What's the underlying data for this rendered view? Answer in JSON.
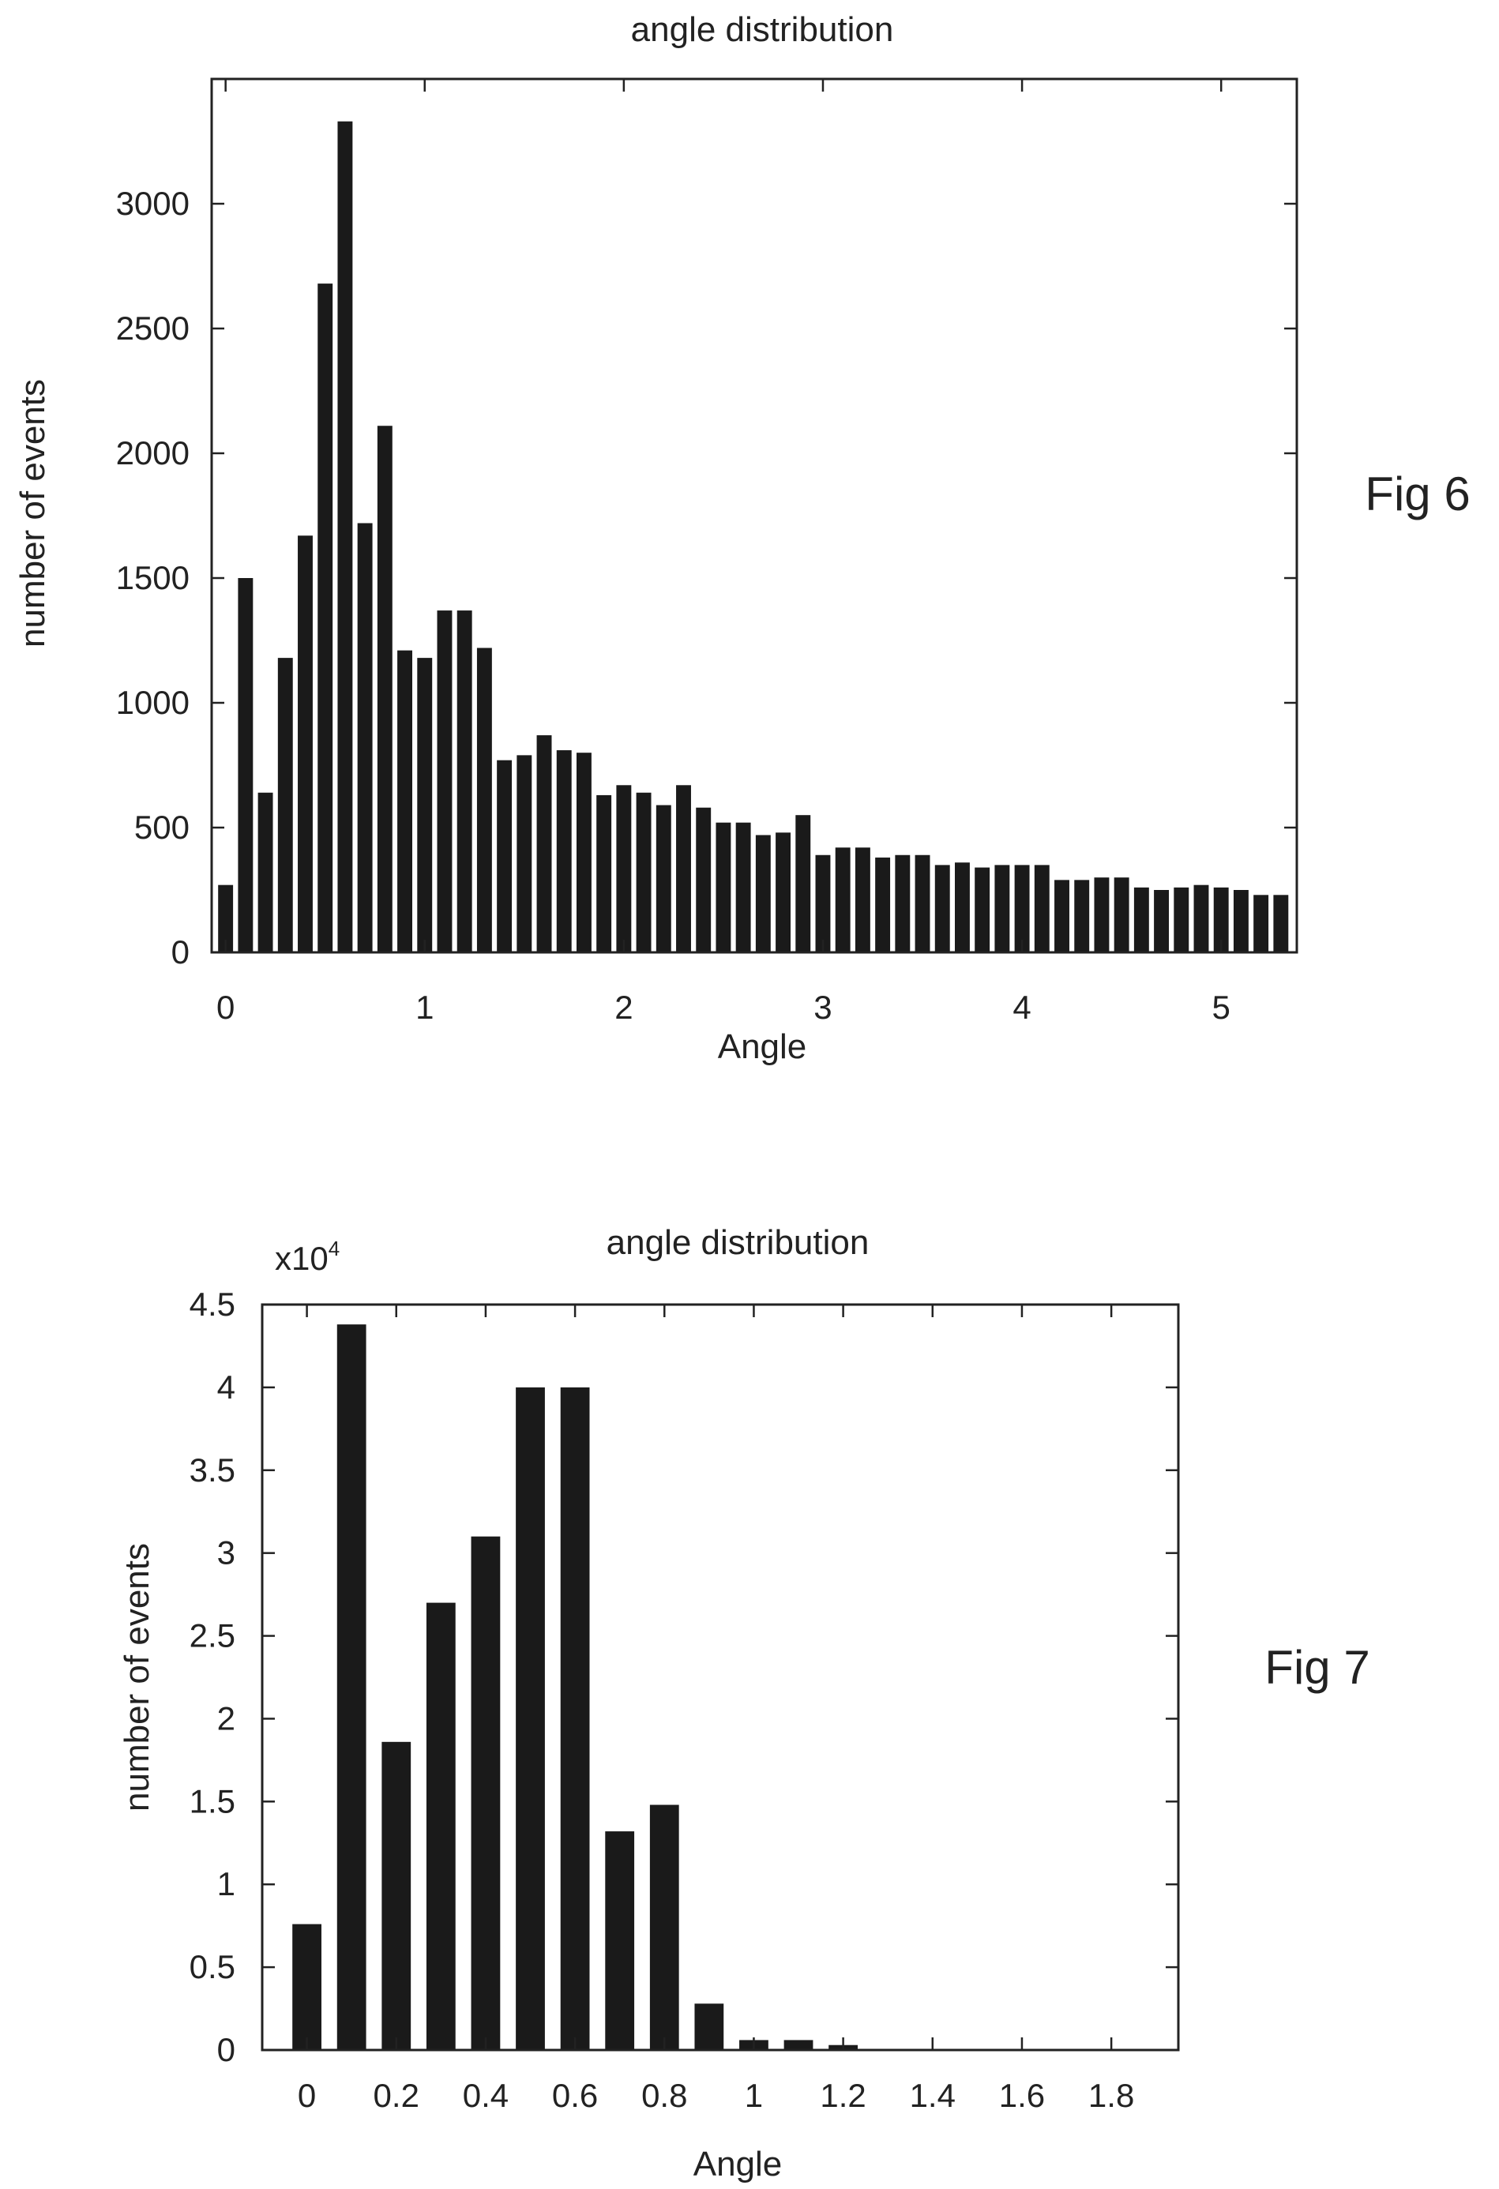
{
  "chart_data": [
    {
      "type": "bar",
      "figure_label": "Fig 6",
      "title": "angle distribution",
      "xlabel": "Angle",
      "ylabel": "number of events",
      "xlim": [
        -0.07,
        5.38
      ],
      "ylim": [
        0,
        3500
      ],
      "xticks": [
        0,
        1,
        2,
        3,
        4,
        5
      ],
      "yticks": [
        0,
        500,
        1000,
        1500,
        2000,
        2500,
        3000
      ],
      "bar_width": 0.075,
      "x": [
        0.0,
        0.1,
        0.2,
        0.3,
        0.4,
        0.5,
        0.6,
        0.7,
        0.8,
        0.9,
        1.0,
        1.1,
        1.2,
        1.3,
        1.4,
        1.5,
        1.6,
        1.7,
        1.8,
        1.9,
        2.0,
        2.1,
        2.2,
        2.3,
        2.4,
        2.5,
        2.6,
        2.7,
        2.8,
        2.9,
        3.0,
        3.1,
        3.2,
        3.3,
        3.4,
        3.5,
        3.6,
        3.7,
        3.8,
        3.9,
        4.0,
        4.1,
        4.2,
        4.3,
        4.4,
        4.5,
        4.6,
        4.7,
        4.8,
        4.9,
        5.0,
        5.1,
        5.2,
        5.3
      ],
      "values": [
        270,
        1500,
        640,
        1180,
        1670,
        2680,
        3330,
        1720,
        2110,
        1210,
        1180,
        1370,
        1370,
        1220,
        770,
        790,
        870,
        810,
        800,
        630,
        670,
        640,
        590,
        670,
        580,
        520,
        520,
        470,
        480,
        550,
        390,
        420,
        420,
        380,
        390,
        390,
        350,
        360,
        340,
        350,
        350,
        350,
        290,
        290,
        300,
        300,
        260,
        250,
        260,
        270,
        260,
        250,
        230,
        230
      ]
    },
    {
      "type": "bar",
      "figure_label": "Fig 7",
      "title": "angle distribution",
      "xlabel": "Angle",
      "ylabel": "number of events",
      "scale_label": "x10",
      "scale_exponent": "4",
      "xlim": [
        -0.1,
        1.95
      ],
      "ylim": [
        0,
        4.5
      ],
      "xticks": [
        "0",
        "0.2",
        "0.4",
        "0.6",
        "0.8",
        "1",
        "1.2",
        "1.4",
        "1.6",
        "1.8"
      ],
      "yticks": [
        "0",
        "0.5",
        "1",
        "1.5",
        "2",
        "2.5",
        "3",
        "3.5",
        "4",
        "4.5"
      ],
      "bar_width": 0.065,
      "x": [
        0.0,
        0.1,
        0.2,
        0.3,
        0.4,
        0.5,
        0.6,
        0.7,
        0.8,
        0.9,
        1.0,
        1.1,
        1.2
      ],
      "values": [
        0.76,
        4.38,
        1.86,
        2.7,
        3.1,
        4.0,
        4.0,
        1.32,
        1.48,
        0.28,
        0.06,
        0.06,
        0.03
      ]
    }
  ]
}
